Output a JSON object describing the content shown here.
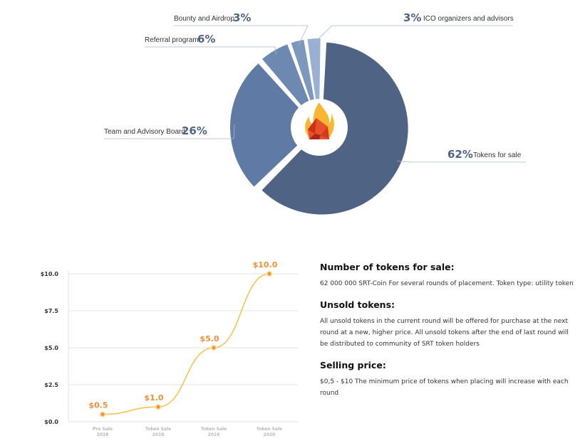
{
  "chart_data": [
    {
      "type": "pie",
      "style": "donut",
      "slices": [
        {
          "label": "Tokens for sale",
          "pct_text": "62%",
          "value": 62,
          "color": "#4f6385"
        },
        {
          "label": "Team and Advisory Board",
          "pct_text": "26%",
          "value": 26,
          "color": "#5f7aa5"
        },
        {
          "label": "Referral program",
          "pct_text": "6%",
          "value": 6,
          "color": "#6e89b1"
        },
        {
          "label": "Bounty and Airdrop",
          "pct_text": "3%",
          "value": 3,
          "color": "#7d98bd"
        },
        {
          "label": "ICO organizers and advisors",
          "pct_text": "3%",
          "value": 3,
          "color": "#98b0d3"
        }
      ],
      "center_icon": "flame-logo-icon"
    },
    {
      "type": "line",
      "x": [
        {
          "line1": "Pre Sale",
          "line2": "2018"
        },
        {
          "line1": "Token Sale",
          "line2": "2018"
        },
        {
          "line1": "Token Sale",
          "line2": "2019"
        },
        {
          "line1": "Token Sale",
          "line2": "2020"
        }
      ],
      "series": [
        {
          "values": [
            0.5,
            1.0,
            5.0,
            10.0
          ],
          "value_labels": [
            "$0.5",
            "$1.0",
            "$5.0",
            "$10.0"
          ],
          "color": "#f7c04a"
        }
      ],
      "yticks": [
        "$0.0",
        "$2.5",
        "$5.0",
        "$7.5",
        "$10.0"
      ],
      "ylim": [
        0,
        10
      ],
      "grid": true
    }
  ],
  "info": {
    "sections": [
      {
        "heading": "Number of tokens for sale:",
        "text": "62 000 000 SRT-Coin For several rounds of placement. Token type: utility token"
      },
      {
        "heading": "Unsold tokens:",
        "text": "All unsold tokens in the current round will be offered for purchase at the next round at a new, higher price. All unsold tokens after the end of last round will be distributed to community of SRT token holders"
      },
      {
        "heading": "Selling price:",
        "text": "$0,5 - $10 The minimum price of tokens when placing will increase with each round"
      }
    ]
  },
  "colors": {
    "accent": "#f0913a",
    "pie_text": "#4f6385"
  }
}
